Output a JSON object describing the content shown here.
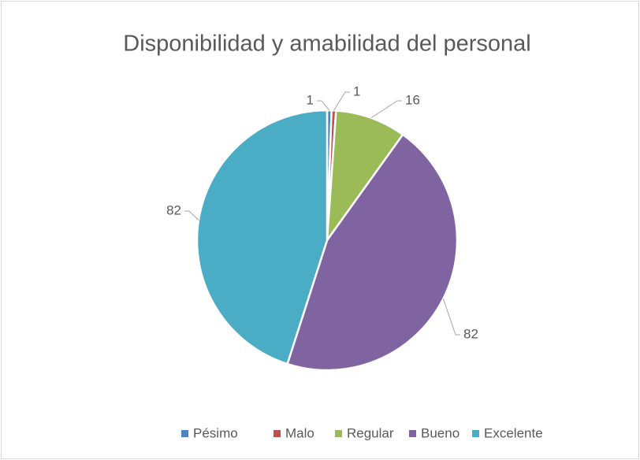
{
  "chart_data": {
    "type": "pie",
    "title": "Disponibilidad y amabilidad del personal",
    "categories": [
      "Pésimo",
      "Malo",
      "Regular",
      "Bueno",
      "Excelente"
    ],
    "values": [
      1,
      1,
      16,
      82,
      82
    ],
    "colors": [
      "#4f81bd",
      "#c0504d",
      "#9bbb59",
      "#8064a2",
      "#4bacc6"
    ],
    "legend": "bottom"
  }
}
